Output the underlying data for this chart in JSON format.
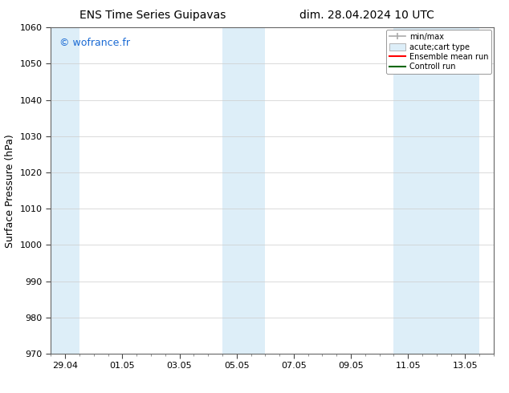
{
  "title_left": "ENS Time Series Guipavas",
  "title_right": "dim. 28.04.2024 10 UTC",
  "ylabel": "Surface Pressure (hPa)",
  "ylim": [
    970,
    1060
  ],
  "yticks": [
    970,
    980,
    990,
    1000,
    1010,
    1020,
    1030,
    1040,
    1050,
    1060
  ],
  "xtick_labels": [
    "29.04",
    "01.05",
    "03.05",
    "05.05",
    "07.05",
    "09.05",
    "11.05",
    "13.05"
  ],
  "xtick_positions": [
    0,
    2,
    4,
    6,
    8,
    10,
    12,
    14
  ],
  "xlim": [
    -0.5,
    15.0
  ],
  "shaded_bands": [
    {
      "x_start": -0.5,
      "x_end": 0.5,
      "color": "#ddeef8"
    },
    {
      "x_start": 5.5,
      "x_end": 7.0,
      "color": "#ddeef8"
    },
    {
      "x_start": 11.5,
      "x_end": 14.5,
      "color": "#ddeef8"
    }
  ],
  "watermark": "© wofrance.fr",
  "watermark_color": "#1a6ad4",
  "legend_labels": [
    "min/max",
    "acute;cart type",
    "Ensemble mean run",
    "Controll run"
  ],
  "legend_colors_line": [
    "#aaaaaa",
    "#cccccc",
    "#ff0000",
    "#008000"
  ],
  "background_color": "#ffffff",
  "plot_bg_color": "#ffffff",
  "grid_color": "#cccccc",
  "title_fontsize": 10,
  "tick_fontsize": 8,
  "ylabel_fontsize": 9,
  "watermark_fontsize": 9,
  "legend_fontsize": 7,
  "shaded_band_color": "#ddeef8"
}
